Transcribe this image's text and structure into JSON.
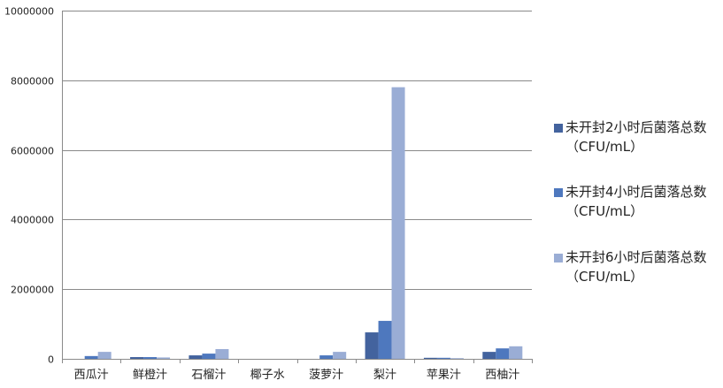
{
  "chart_data": {
    "type": "bar",
    "title": "",
    "xlabel": "",
    "ylabel": "",
    "ylim": [
      0,
      10000000
    ],
    "yticks": [
      0,
      2000000,
      4000000,
      6000000,
      8000000,
      10000000
    ],
    "grid": true,
    "legend_position": "right",
    "categories": [
      "西瓜汁",
      "鲜橙汁",
      "石榴汁",
      "椰子水",
      "菠萝汁",
      "梨汁",
      "苹果汁",
      "西柚汁"
    ],
    "series": [
      {
        "name": "未开封2小时后菌落总数（CFU/mL）",
        "color": "#43639e",
        "values": [
          0,
          50000,
          100000,
          0,
          0,
          760000,
          30000,
          200000
        ]
      },
      {
        "name": "未开封4小时后菌落总数（CFU/mL）",
        "color": "#4e78be",
        "values": [
          80000,
          50000,
          150000,
          0,
          100000,
          1090000,
          30000,
          300000
        ]
      },
      {
        "name": "未开封6小时后菌落总数（CFU/mL）",
        "color": "#9aadd5",
        "values": [
          200000,
          40000,
          280000,
          0,
          200000,
          7800000,
          20000,
          360000
        ]
      }
    ]
  }
}
